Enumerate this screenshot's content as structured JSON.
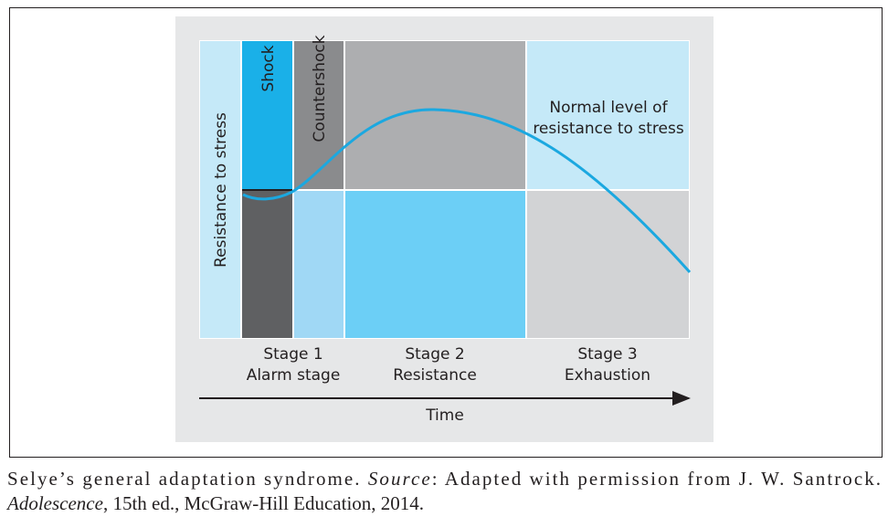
{
  "diagram": {
    "y_axis_label": "Resistance to stress",
    "phase_labels": [
      "Shock",
      "Countershock"
    ],
    "normal_level_label": [
      "Normal level of",
      "resistance to stress"
    ],
    "stages": [
      {
        "name": "Stage 1",
        "label": "Alarm stage"
      },
      {
        "name": "Stage 2",
        "label": "Resistance"
      },
      {
        "name": "Stage 3",
        "label": "Exhaustion"
      }
    ],
    "x_axis_label": "Time"
  },
  "caption": {
    "line1": [
      "Selye’s general adaptation syndrome. ",
      "Source",
      ": Adapted with permission from J. W. Santrock."
    ],
    "line2": [
      "Adolescence",
      ", 15th ed., McGraw-Hill Education, 2014."
    ]
  }
}
